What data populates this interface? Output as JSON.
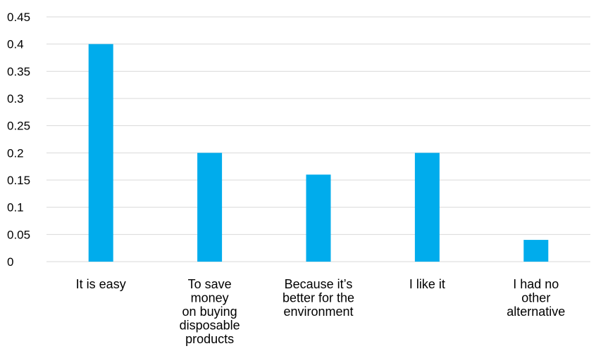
{
  "chart_data": {
    "type": "bar",
    "categories": [
      [
        "It is easy"
      ],
      [
        "To save",
        "money",
        "on buying",
        "disposable",
        "products"
      ],
      [
        "Because it’s",
        "better for the",
        "environment"
      ],
      [
        "I like it"
      ],
      [
        "I had no",
        "other",
        "alternative"
      ]
    ],
    "values": [
      0.4,
      0.2,
      0.16,
      0.2,
      0.04
    ],
    "yticks": [
      "0",
      "0.05",
      "0.1",
      "0.15",
      "0.2",
      "0.25",
      "0.3",
      "0.35",
      "0.4",
      "0.45"
    ],
    "ylim": [
      0,
      0.45
    ],
    "grid": true,
    "bar_color": "#00ACEC",
    "grid_color": "#D9D9D9",
    "title": "",
    "xlabel": "",
    "ylabel": ""
  }
}
